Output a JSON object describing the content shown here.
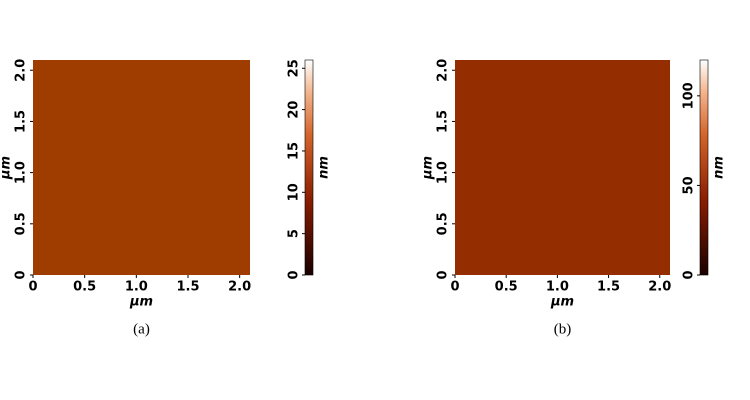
{
  "panels": [
    {
      "caption": "(a)",
      "x_label": "μm",
      "y_label": "μm",
      "colorbar_label": "nm",
      "xlim": [
        0,
        2.1
      ],
      "ylim": [
        0,
        2.1
      ],
      "xticks": [
        0,
        0.5,
        {
          "value": 1,
          "label": "1.0"
        },
        1.5,
        {
          "value": 2,
          "label": "2.0"
        }
      ],
      "yticks": [
        0,
        0.5,
        {
          "value": 1,
          "label": "1.0"
        },
        1.5,
        {
          "value": 2,
          "label": "2.0"
        }
      ],
      "colorbar_lim": [
        0,
        26
      ],
      "colorbar_ticks": [
        0,
        5,
        10,
        15,
        20,
        25
      ]
    },
    {
      "caption": "(b)",
      "x_label": "μm",
      "y_label": "μm",
      "colorbar_label": "nm",
      "xlim": [
        0,
        2.1
      ],
      "ylim": [
        0,
        2.1
      ],
      "xticks": [
        0,
        0.5,
        {
          "value": 1,
          "label": "1.0"
        },
        1.5,
        {
          "value": 2,
          "label": "2.0"
        }
      ],
      "yticks": [
        0,
        0.5,
        {
          "value": 1,
          "label": "1.0"
        },
        1.5,
        {
          "value": 2,
          "label": "2.0"
        }
      ],
      "colorbar_lim": [
        0,
        120
      ],
      "colorbar_ticks": [
        0,
        50,
        100
      ]
    }
  ]
}
